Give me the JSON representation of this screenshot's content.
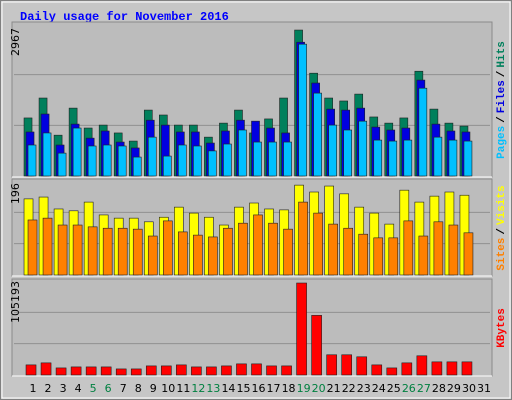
{
  "chart_data": {
    "type": "bar",
    "title": "Daily usage for November 2016",
    "categories": [
      "1",
      "2",
      "3",
      "4",
      "5",
      "6",
      "7",
      "8",
      "9",
      "10",
      "11",
      "12",
      "13",
      "14",
      "15",
      "16",
      "17",
      "18",
      "19",
      "20",
      "21",
      "22",
      "23",
      "24",
      "25",
      "26",
      "27",
      "28",
      "29",
      "30",
      "31"
    ],
    "highlight_indices": [
      4,
      5,
      11,
      12,
      18,
      19,
      25,
      26
    ],
    "highlight_color": "#008040",
    "legend_separator": "/",
    "panels": [
      {
        "ylim": [
          0,
          3090
        ],
        "yticks": [
          2967
        ],
        "series": [
          {
            "name": "Hits",
            "color": "#00805c",
            "values": [
              1180,
              1585,
              830,
              1380,
              975,
              1035,
              875,
              710,
              1340,
              1240,
              1035,
              1035,
              790,
              1075,
              1340,
              875,
              1160,
              1585,
              2967,
              2090,
              1585,
              1525,
              1665,
              1200,
              1075,
              1180,
              2130,
              1360,
              1075,
              1015,
              null
            ]
          },
          {
            "name": "Files",
            "color": "#0000e0",
            "values": [
              895,
              1260,
              630,
              1055,
              770,
              915,
              690,
              570,
              1135,
              1035,
              895,
              895,
              670,
              915,
              1135,
              1115,
              975,
              875,
              2720,
              1890,
              1360,
              1340,
              1380,
              995,
              935,
              975,
              1950,
              1055,
              915,
              895,
              null
            ]
          },
          {
            "name": "Pages",
            "color": "#00c0ff",
            "values": [
              630,
              875,
              465,
              975,
              610,
              630,
              610,
              385,
              790,
              405,
              630,
              610,
              510,
              650,
              935,
              690,
              690,
              690,
              2680,
              1685,
              1035,
              935,
              1115,
              730,
              710,
              730,
              1785,
              790,
              730,
              710,
              null
            ]
          }
        ]
      },
      {
        "ylim": [
          0,
          205
        ],
        "yticks": [
          196
        ],
        "series": [
          {
            "name": "Visits",
            "color": "#ffff00",
            "values": [
              166,
              170,
              144,
              140,
              159,
              131,
              124,
              124,
              116,
              126,
              148,
              135,
              126,
              109,
              148,
              157,
              144,
              142,
              196,
              181,
              194,
              177,
              148,
              135,
              111,
              185,
              159,
              172,
              181,
              174,
              null
            ]
          },
          {
            "name": "Sites",
            "color": "#ff8000",
            "values": [
              120,
              124,
              109,
              109,
              105,
              102,
              102,
              100,
              85,
              118,
              94,
              87,
              83,
              102,
              113,
              131,
              113,
              100,
              159,
              135,
              111,
              102,
              89,
              81,
              81,
              118,
              85,
              116,
              109,
              92,
              null
            ]
          }
        ]
      },
      {
        "ylim": [
          0,
          107500
        ],
        "yticks": [
          105193
        ],
        "series": [
          {
            "name": "KBytes",
            "color": "#ff0000",
            "values": [
              11560,
              13870,
              8090,
              9250,
              9250,
              9250,
              6940,
              6940,
              10400,
              10400,
              11560,
              9250,
              9250,
              10400,
              12720,
              12720,
              10400,
              10400,
              105193,
              68200,
              23120,
              23120,
              20810,
              11560,
              8090,
              13870,
              21960,
              15030,
              15030,
              15030,
              null
            ]
          }
        ]
      }
    ]
  }
}
